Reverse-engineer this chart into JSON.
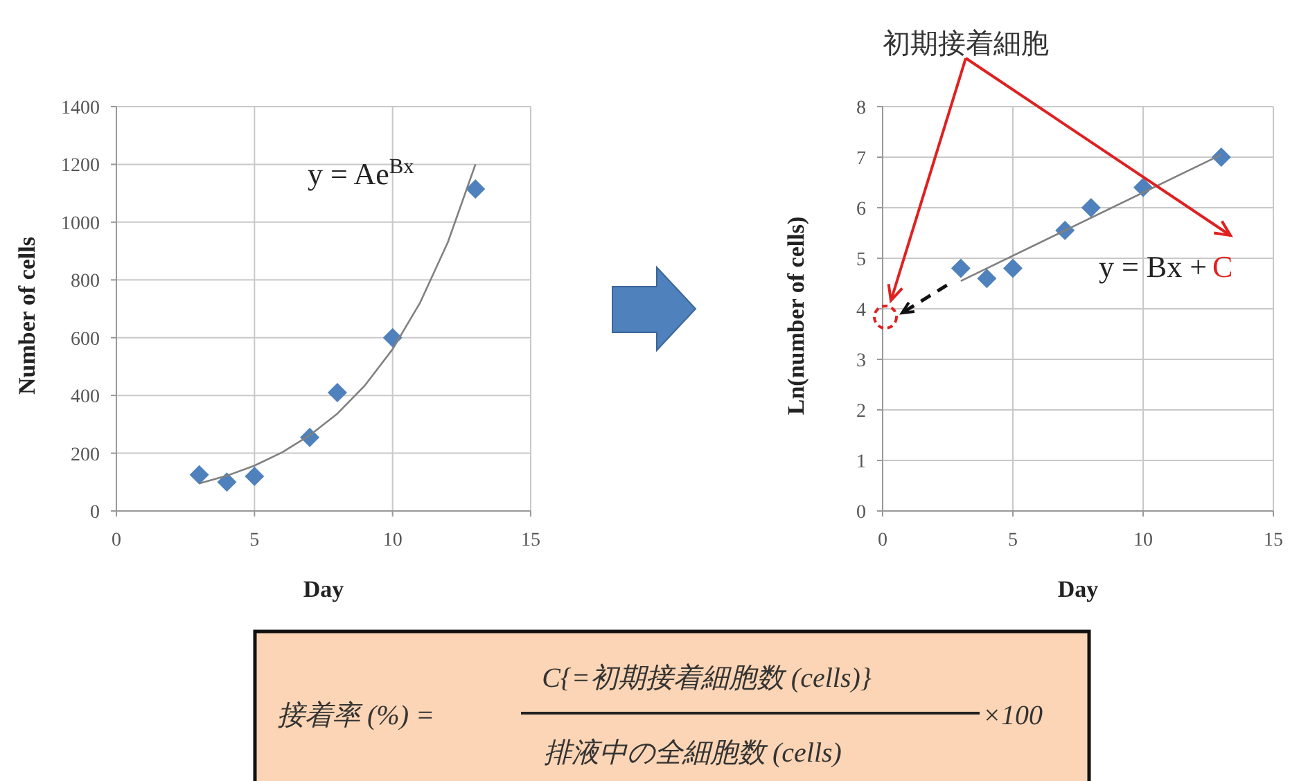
{
  "chart_data": [
    {
      "type": "scatter",
      "xlabel": "Day",
      "ylabel": "Number of cells",
      "xlim": [
        0,
        15
      ],
      "ylim": [
        0,
        1400
      ],
      "xticks": [
        0,
        5,
        10,
        15
      ],
      "yticks": [
        0,
        200,
        400,
        600,
        800,
        1000,
        1200,
        1400
      ],
      "grid": true,
      "annotations": [
        "y = Ae$^{Bx}$"
      ],
      "series": [
        {
          "type": "scatter",
          "color": "#4f81bd",
          "marker": "diamond",
          "x": [
            3,
            4,
            5,
            7,
            8,
            10,
            13
          ],
          "values": [
            125,
            100,
            120,
            255,
            410,
            600,
            1115
          ]
        },
        {
          "type": "line",
          "color": "#808080",
          "x": [
            3,
            4,
            5,
            6,
            7,
            8,
            9,
            10,
            11,
            12,
            13
          ],
          "values": [
            95,
            122,
            157,
            203,
            262,
            337,
            435,
            560,
            722,
            930,
            1200
          ]
        }
      ]
    },
    {
      "type": "scatter",
      "xlabel": "Day",
      "ylabel": "Ln(number of cells)",
      "xlim": [
        0,
        15
      ],
      "ylim": [
        0,
        8
      ],
      "xticks": [
        0,
        5,
        10,
        15
      ],
      "yticks": [
        0,
        1,
        2,
        3,
        4,
        5,
        6,
        7,
        8
      ],
      "grid": true,
      "annotations": [
        "初期接着細胞",
        "y = Bx +",
        "C"
      ],
      "series": [
        {
          "type": "scatter",
          "color": "#4f81bd",
          "marker": "diamond",
          "x": [
            3,
            4,
            5,
            7,
            8,
            10,
            13
          ],
          "values": [
            4.8,
            4.6,
            4.8,
            5.55,
            6.0,
            6.4,
            7.0
          ]
        },
        {
          "type": "line",
          "color": "#808080",
          "x": [
            3,
            13
          ],
          "values": [
            4.55,
            7.05
          ]
        }
      ]
    },
    {
      "type": "other",
      "annotations": [
        "接着率 (%) =",
        "C{=初期接着細胞数 (cells)}",
        "排液中の全細胞数 (cells)",
        "×100"
      ]
    }
  ]
}
